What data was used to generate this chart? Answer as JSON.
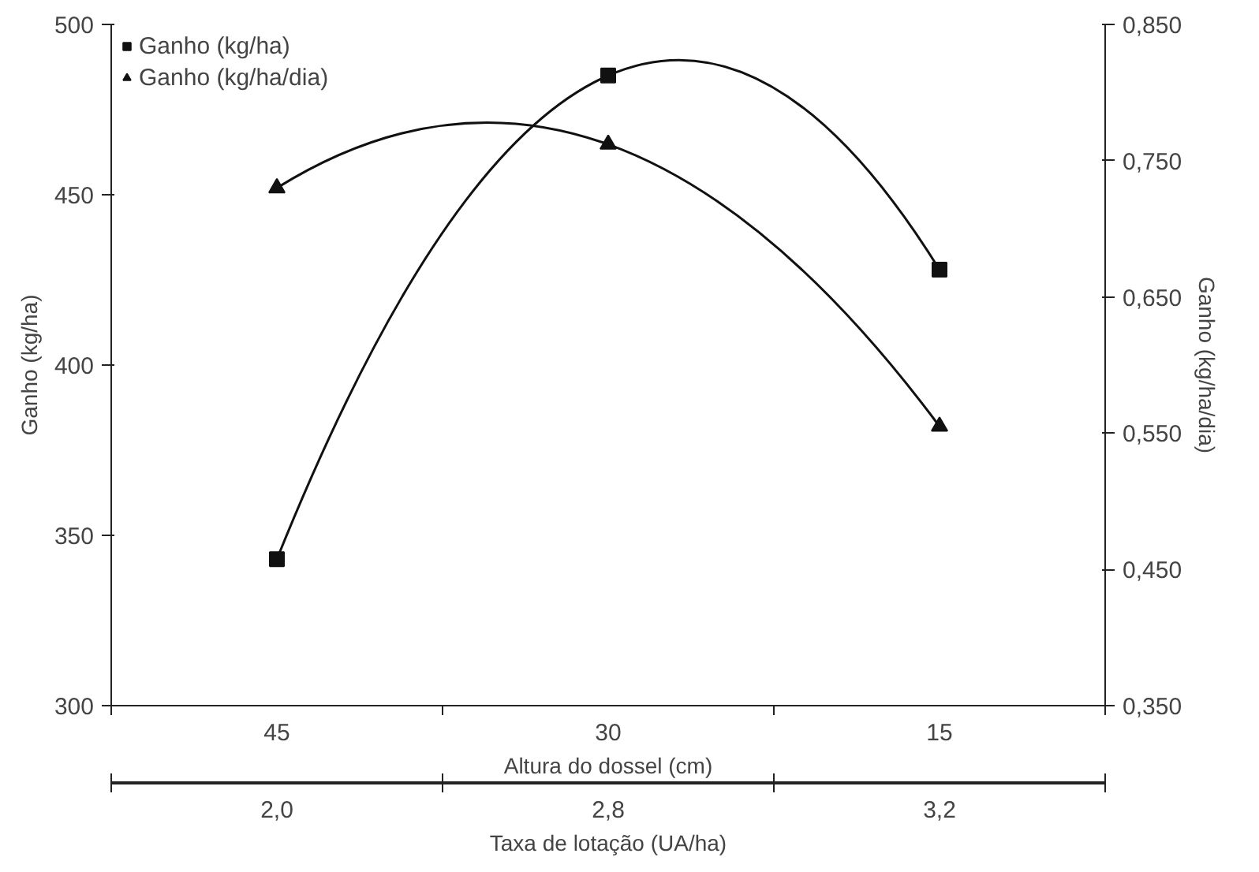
{
  "chart_data": {
    "type": "line",
    "categories": [
      "45",
      "30",
      "15"
    ],
    "xlabel": "Altura do dossel (cm)",
    "ylabel": "Ganho (kg/ha)",
    "y2label": "Ganho (kg/ha/dia)",
    "x2label": "Taxa de lotação (UA/ha)",
    "annotations": [
      "2,0",
      "2,8",
      "3,2"
    ],
    "ylim": [
      300,
      500
    ],
    "yticks": [
      300,
      350,
      400,
      450,
      500
    ],
    "y2lim": [
      0.35,
      0.85
    ],
    "y2ticks": [
      {
        "value": 0.35,
        "label": "0,350"
      },
      {
        "value": 0.45,
        "label": "0,450"
      },
      {
        "value": 0.55,
        "label": "0,550"
      },
      {
        "value": 0.65,
        "label": "0,650"
      },
      {
        "value": 0.75,
        "label": "0,750"
      },
      {
        "value": 0.85,
        "label": "0,850"
      }
    ],
    "series": [
      {
        "name": "Ganho (kg/ha)",
        "color": "#111111",
        "marker": "square",
        "values": [
          343,
          485,
          428
        ]
      },
      {
        "name": "Ganho (kg/ha/dia)",
        "color": "#111111",
        "marker": "triangle",
        "axis": "y2",
        "values": [
          0.73,
          0.762,
          0.555
        ]
      }
    ],
    "legend": "top left",
    "grid": false,
    "line_style": "solid"
  }
}
